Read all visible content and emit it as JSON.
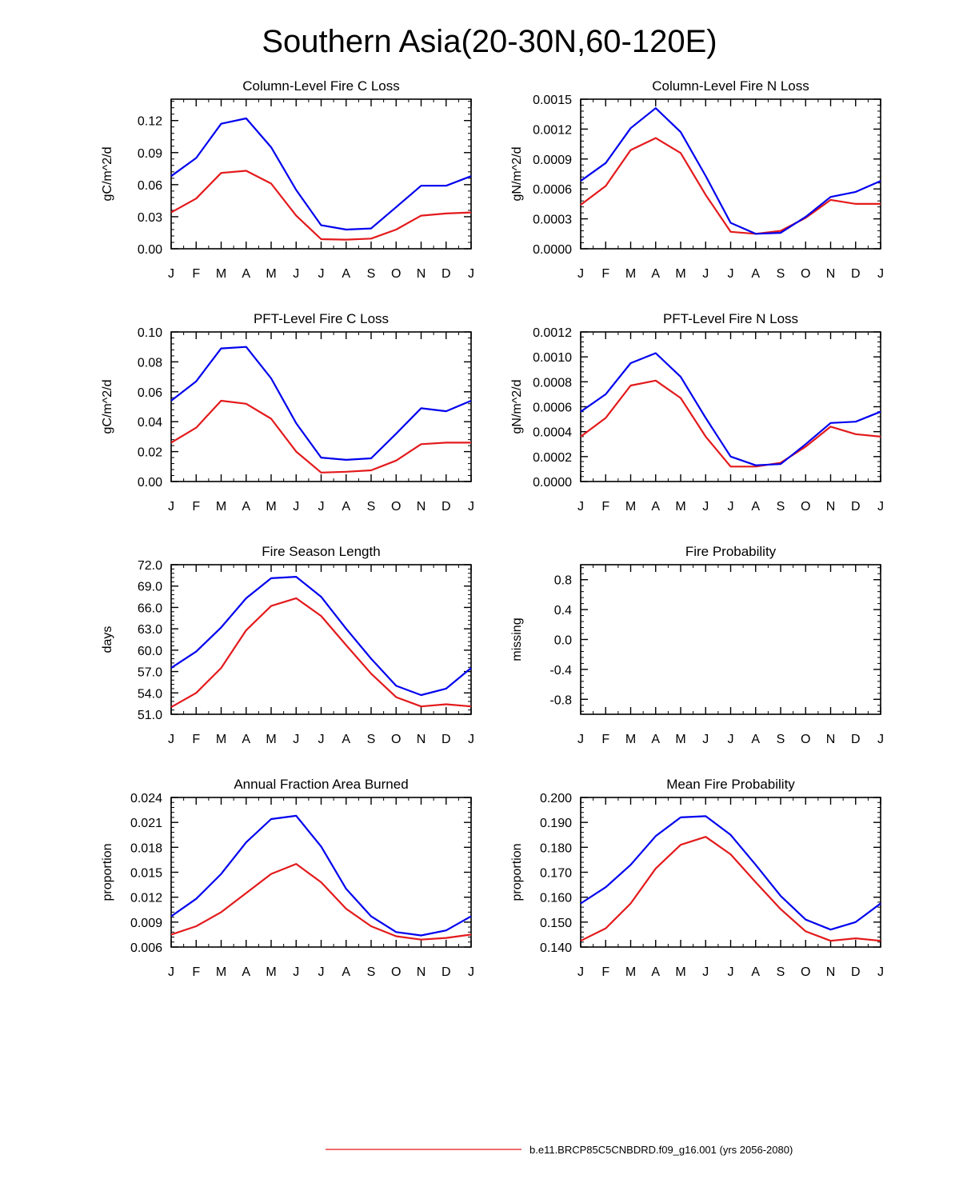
{
  "page": {
    "title": "Southern Asia(20-30N,60-120E)"
  },
  "colors": {
    "series_a": "#e31a1c",
    "series_b": "#0000ee",
    "axis": "#000000"
  },
  "legend": [
    {
      "label": "b.e11.BRCP85C5CNBDRD.f09_g16.001 (yrs 2056-2080)",
      "color": "#e31a1c"
    }
  ],
  "chart_data": [
    {
      "type": "line",
      "title": "Column-Level Fire C Loss",
      "ylabel": "gC/m^2/d",
      "categories": [
        "J",
        "F",
        "M",
        "A",
        "M",
        "J",
        "J",
        "A",
        "S",
        "O",
        "N",
        "D",
        "J"
      ],
      "ylim": [
        0,
        0.14
      ],
      "yticks": [
        0.0,
        0.03,
        0.06,
        0.09,
        0.12
      ],
      "ytick_labels": [
        "0.00",
        "0.03",
        "0.06",
        "0.09",
        "0.12"
      ],
      "series": [
        {
          "name": "red",
          "color": "#e31a1c",
          "values": [
            0.034,
            0.047,
            0.071,
            0.073,
            0.061,
            0.031,
            0.009,
            0.0085,
            0.0095,
            0.018,
            0.031,
            0.033,
            0.034
          ]
        },
        {
          "name": "blue",
          "color": "#0000ee",
          "values": [
            0.068,
            0.085,
            0.117,
            0.122,
            0.095,
            0.055,
            0.022,
            0.018,
            0.019,
            0.039,
            0.059,
            0.059,
            0.068
          ]
        }
      ]
    },
    {
      "type": "line",
      "title": "Column-Level Fire N Loss",
      "ylabel": "gN/m^2/d",
      "categories": [
        "J",
        "F",
        "M",
        "A",
        "M",
        "J",
        "J",
        "A",
        "S",
        "O",
        "N",
        "D",
        "J"
      ],
      "ylim": [
        0,
        0.0015
      ],
      "yticks": [
        0.0,
        0.0003,
        0.0006,
        0.0009,
        0.0012,
        0.0015
      ],
      "ytick_labels": [
        "0.0000",
        "0.0003",
        "0.0006",
        "0.0009",
        "0.0012",
        "0.0015"
      ],
      "series": [
        {
          "name": "red",
          "color": "#e31a1c",
          "values": [
            0.00044,
            0.00063,
            0.00099,
            0.00111,
            0.00096,
            0.00054,
            0.00017,
            0.00015,
            0.00018,
            0.00031,
            0.00049,
            0.00045,
            0.00045
          ]
        },
        {
          "name": "blue",
          "color": "#0000ee",
          "values": [
            0.00068,
            0.00086,
            0.00121,
            0.00141,
            0.00117,
            0.00073,
            0.00026,
            0.00015,
            0.00016,
            0.00032,
            0.00052,
            0.00057,
            0.00068
          ]
        }
      ]
    },
    {
      "type": "line",
      "title": "PFT-Level Fire C Loss",
      "ylabel": "gC/m^2/d",
      "categories": [
        "J",
        "F",
        "M",
        "A",
        "M",
        "J",
        "J",
        "A",
        "S",
        "O",
        "N",
        "D",
        "J"
      ],
      "ylim": [
        0,
        0.1
      ],
      "yticks": [
        0.0,
        0.02,
        0.04,
        0.06,
        0.08,
        0.1
      ],
      "ytick_labels": [
        "0.00",
        "0.02",
        "0.04",
        "0.06",
        "0.08",
        "0.10"
      ],
      "series": [
        {
          "name": "red",
          "color": "#e31a1c",
          "values": [
            0.026,
            0.036,
            0.054,
            0.052,
            0.042,
            0.02,
            0.006,
            0.0065,
            0.0075,
            0.014,
            0.025,
            0.026,
            0.026
          ]
        },
        {
          "name": "blue",
          "color": "#0000ee",
          "values": [
            0.054,
            0.067,
            0.089,
            0.09,
            0.069,
            0.039,
            0.016,
            0.0145,
            0.0155,
            0.032,
            0.049,
            0.047,
            0.054
          ]
        }
      ]
    },
    {
      "type": "line",
      "title": "PFT-Level Fire N Loss",
      "ylabel": "gN/m^2/d",
      "categories": [
        "J",
        "F",
        "M",
        "A",
        "M",
        "J",
        "J",
        "A",
        "S",
        "O",
        "N",
        "D",
        "J"
      ],
      "ylim": [
        0,
        0.0012
      ],
      "yticks": [
        0.0,
        0.0002,
        0.0004,
        0.0006,
        0.0008,
        0.001,
        0.0012
      ],
      "ytick_labels": [
        "0.0000",
        "0.0002",
        "0.0004",
        "0.0006",
        "0.0008",
        "0.0010",
        "0.0012"
      ],
      "series": [
        {
          "name": "red",
          "color": "#e31a1c",
          "values": [
            0.00036,
            0.00051,
            0.00077,
            0.00081,
            0.00067,
            0.00036,
            0.00012,
            0.00012,
            0.00015,
            0.00028,
            0.00044,
            0.00038,
            0.00036
          ]
        },
        {
          "name": "blue",
          "color": "#0000ee",
          "values": [
            0.00056,
            0.0007,
            0.00095,
            0.00103,
            0.00084,
            0.00051,
            0.0002,
            0.00013,
            0.00014,
            0.0003,
            0.00047,
            0.00048,
            0.00056
          ]
        }
      ]
    },
    {
      "type": "line",
      "title": "Fire Season Length",
      "ylabel": "days",
      "categories": [
        "J",
        "F",
        "M",
        "A",
        "M",
        "J",
        "J",
        "A",
        "S",
        "O",
        "N",
        "D",
        "J"
      ],
      "ylim": [
        51,
        72
      ],
      "yticks": [
        51,
        54,
        57,
        60,
        63,
        66,
        69,
        72
      ],
      "ytick_labels": [
        "51.0",
        "54.0",
        "57.0",
        "60.0",
        "63.0",
        "66.0",
        "69.0",
        "72.0"
      ],
      "series": [
        {
          "name": "red",
          "color": "#e31a1c",
          "values": [
            52.0,
            54.0,
            57.5,
            62.8,
            66.2,
            67.3,
            64.8,
            60.7,
            56.7,
            53.4,
            52.1,
            52.4,
            52.1
          ]
        },
        {
          "name": "blue",
          "color": "#0000ee",
          "values": [
            57.5,
            59.8,
            63.2,
            67.3,
            70.1,
            70.3,
            67.5,
            63.0,
            58.8,
            55.0,
            53.7,
            54.6,
            57.5
          ]
        }
      ]
    },
    {
      "type": "line",
      "title": "Fire Probability",
      "ylabel": "missing",
      "categories": [
        "J",
        "F",
        "M",
        "A",
        "M",
        "J",
        "J",
        "A",
        "S",
        "O",
        "N",
        "D",
        "J"
      ],
      "ylim": [
        -1.0,
        1.0
      ],
      "yticks": [
        -0.8,
        -0.4,
        0.0,
        0.4,
        0.8
      ],
      "ytick_labels": [
        "-0.8",
        "-0.4",
        "0.0",
        "0.4",
        "0.8"
      ],
      "series": []
    },
    {
      "type": "line",
      "title": "Annual Fraction Area Burned",
      "ylabel": "proportion",
      "categories": [
        "J",
        "F",
        "M",
        "A",
        "M",
        "J",
        "J",
        "A",
        "S",
        "O",
        "N",
        "D",
        "J"
      ],
      "ylim": [
        0.006,
        0.024
      ],
      "yticks": [
        0.006,
        0.009,
        0.012,
        0.015,
        0.018,
        0.021,
        0.024
      ],
      "ytick_labels": [
        "0.006",
        "0.009",
        "0.012",
        "0.015",
        "0.018",
        "0.021",
        "0.024"
      ],
      "series": [
        {
          "name": "red",
          "color": "#e31a1c",
          "values": [
            0.0075,
            0.0085,
            0.0102,
            0.0125,
            0.0148,
            0.016,
            0.0138,
            0.0106,
            0.0085,
            0.0073,
            0.0069,
            0.0071,
            0.0075
          ]
        },
        {
          "name": "blue",
          "color": "#0000ee",
          "values": [
            0.0097,
            0.0118,
            0.0148,
            0.0186,
            0.0214,
            0.0218,
            0.0181,
            0.013,
            0.0097,
            0.0078,
            0.0074,
            0.008,
            0.0097
          ]
        }
      ]
    },
    {
      "type": "line",
      "title": "Mean Fire Probability",
      "ylabel": "proportion",
      "categories": [
        "J",
        "F",
        "M",
        "A",
        "M",
        "J",
        "J",
        "A",
        "S",
        "O",
        "N",
        "D",
        "J"
      ],
      "ylim": [
        0.14,
        0.2
      ],
      "yticks": [
        0.14,
        0.15,
        0.16,
        0.17,
        0.18,
        0.19,
        0.2
      ],
      "ytick_labels": [
        "0.140",
        "0.150",
        "0.160",
        "0.170",
        "0.180",
        "0.190",
        "0.200"
      ],
      "series": [
        {
          "name": "red",
          "color": "#e31a1c",
          "values": [
            0.1425,
            0.1475,
            0.1575,
            0.1715,
            0.181,
            0.1842,
            0.1772,
            0.166,
            0.1552,
            0.1463,
            0.1425,
            0.1435,
            0.1425
          ]
        },
        {
          "name": "blue",
          "color": "#0000ee",
          "values": [
            0.1575,
            0.164,
            0.173,
            0.1845,
            0.192,
            0.1925,
            0.185,
            0.173,
            0.1605,
            0.151,
            0.147,
            0.15,
            0.1575
          ]
        }
      ]
    }
  ]
}
